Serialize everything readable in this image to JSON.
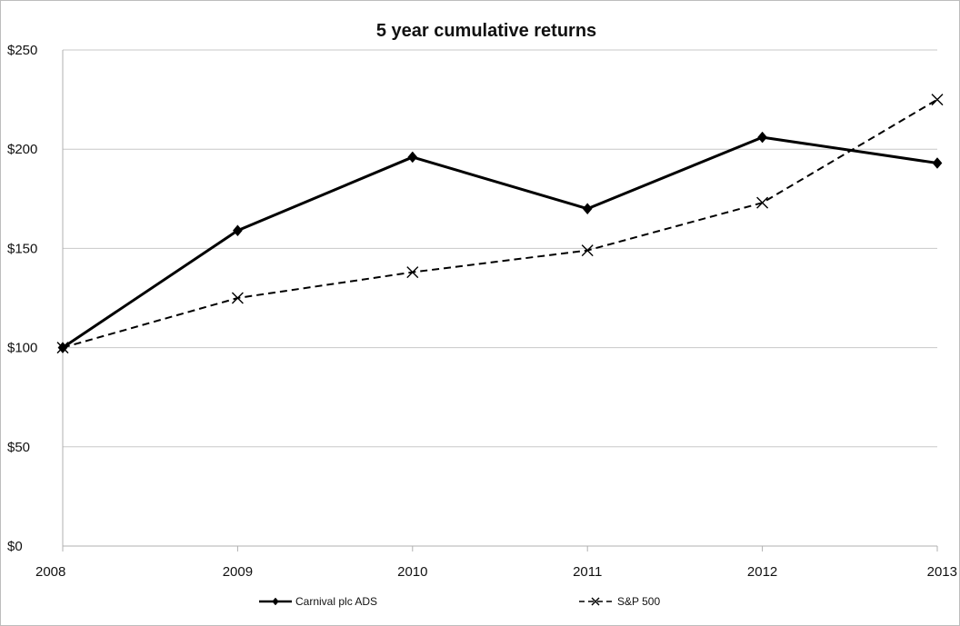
{
  "chart_data": {
    "type": "line",
    "title": "5 year cumulative returns",
    "xlabel": "",
    "ylabel": "",
    "categories": [
      "2008",
      "2009",
      "2010",
      "2011",
      "2012",
      "2013"
    ],
    "y_ticks": [
      "$0",
      "$50",
      "$100",
      "$150",
      "$200",
      "$250"
    ],
    "ylim": [
      0,
      250
    ],
    "grid": true,
    "legend_position": "bottom",
    "series": [
      {
        "name": "Carnival plc ADS",
        "values": [
          100,
          159,
          196,
          170,
          206,
          193
        ],
        "line_style": "solid",
        "marker": "diamond",
        "color": "#000000"
      },
      {
        "name": "S&P 500",
        "values": [
          100,
          125,
          138,
          149,
          173,
          225
        ],
        "line_style": "dashed",
        "marker": "x",
        "color": "#000000"
      }
    ]
  }
}
